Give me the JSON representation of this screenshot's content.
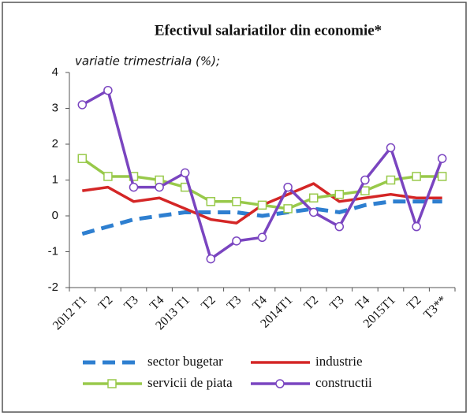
{
  "chart_data": {
    "type": "line",
    "title": "Efectivul salariatilor din economie*",
    "subtitle": "variatie trimestriala (%);",
    "categories": [
      "2012 T1",
      "T2",
      "T3",
      "T4",
      "2013 T1",
      "T2",
      "T3",
      "T4",
      "2014T1",
      "T2",
      "T3",
      "T4",
      "2015T1",
      "T2",
      "T3**"
    ],
    "ylim": [
      -2,
      4
    ],
    "yticks": [
      -2,
      -1,
      0,
      1,
      2,
      3,
      4
    ],
    "grid": false,
    "series": [
      {
        "name": "sector bugetar",
        "color": "#2e7fd0",
        "style": "dashed",
        "values": [
          -0.5,
          -0.3,
          -0.1,
          0.0,
          0.1,
          0.1,
          0.1,
          0.0,
          0.1,
          0.2,
          0.1,
          0.3,
          0.4,
          0.4,
          0.4
        ]
      },
      {
        "name": "industrie",
        "color": "#d42626",
        "style": "solid",
        "values": [
          0.7,
          0.8,
          0.4,
          0.5,
          0.2,
          -0.1,
          -0.2,
          0.3,
          0.6,
          0.9,
          0.4,
          0.5,
          0.6,
          0.5,
          0.5
        ]
      },
      {
        "name": "servicii de piata",
        "color": "#98c94a",
        "style": "solid",
        "marker": "square",
        "values": [
          1.6,
          1.1,
          1.1,
          1.0,
          0.8,
          0.4,
          0.4,
          0.3,
          0.2,
          0.5,
          0.6,
          0.7,
          1.0,
          1.1,
          1.1
        ]
      },
      {
        "name": "constructii",
        "color": "#7a45c0",
        "style": "solid",
        "marker": "circle",
        "values": [
          3.1,
          3.5,
          0.8,
          0.8,
          1.2,
          -1.2,
          -0.7,
          -0.6,
          0.8,
          0.1,
          -0.3,
          1.0,
          1.9,
          -0.3,
          1.6
        ]
      }
    ]
  }
}
